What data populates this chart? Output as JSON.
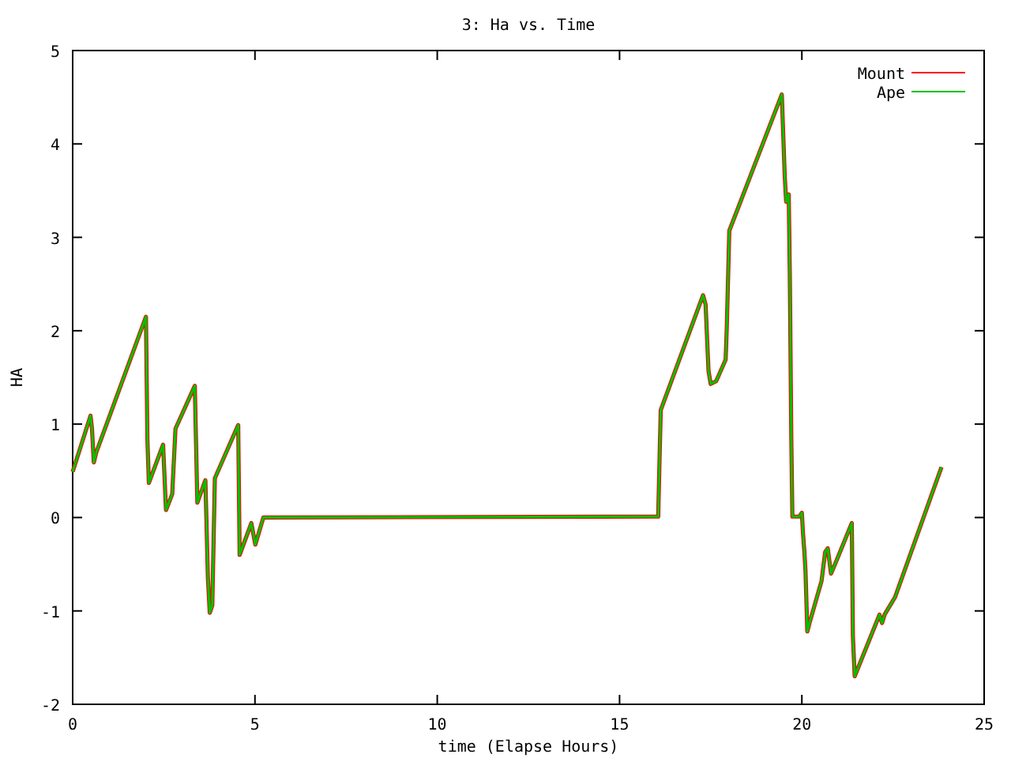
{
  "chart_data": {
    "type": "line",
    "title": "3: Ha vs. Time",
    "xlabel": "time (Elapse Hours)",
    "ylabel": "HA",
    "x": [
      0,
      0.49,
      0.53,
      0.58,
      0.65,
      2.01,
      2.05,
      2.09,
      2.48,
      2.56,
      2.73,
      2.82,
      3.35,
      3.42,
      3.64,
      3.71,
      3.76,
      3.83,
      3.9,
      4.54,
      4.58,
      4.9,
      5.01,
      5.23,
      16.06,
      16.11,
      16.13,
      17.29,
      17.36,
      17.44,
      17.5,
      17.65,
      17.91,
      17.94,
      18.01,
      19.45,
      19.53,
      19.57,
      19.64,
      19.67,
      19.71,
      19.74,
      19.93,
      20.0,
      20.03,
      20.07,
      20.1,
      20.15,
      20.21,
      20.54,
      20.64,
      20.71,
      20.8,
      20.9,
      21.37,
      21.4,
      21.45,
      22.13,
      22.2,
      22.27,
      22.56,
      23.83
    ],
    "series": [
      {
        "name": "Mount",
        "color": "#ff0000",
        "values": [
          0.49,
          1.09,
          0.95,
          0.59,
          0.7,
          2.15,
          0.84,
          0.37,
          0.78,
          0.08,
          0.25,
          0.95,
          1.41,
          0.16,
          0.4,
          -0.65,
          -1.02,
          -0.94,
          0.42,
          0.99,
          -0.4,
          -0.06,
          -0.29,
          0,
          0.01,
          0.84,
          1.15,
          2.38,
          2.28,
          1.57,
          1.43,
          1.46,
          1.69,
          2.02,
          3.07,
          4.53,
          3.66,
          3.38,
          3.46,
          2.6,
          0.87,
          0.01,
          0.01,
          0.05,
          -0.16,
          -0.37,
          -0.57,
          -1.22,
          -1.13,
          -0.68,
          -0.37,
          -0.33,
          -0.6,
          -0.51,
          -0.06,
          -1.27,
          -1.7,
          -1.04,
          -1.13,
          -1.04,
          -0.85,
          0.54
        ]
      },
      {
        "name": "Ape",
        "color": "#00c000",
        "values": [
          0.49,
          1.09,
          0.95,
          0.59,
          0.7,
          2.15,
          0.84,
          0.37,
          0.78,
          0.08,
          0.25,
          0.95,
          1.41,
          0.16,
          0.4,
          -0.65,
          -1.02,
          -0.94,
          0.42,
          0.99,
          -0.4,
          -0.06,
          -0.29,
          0,
          0.01,
          0.84,
          1.15,
          2.38,
          2.28,
          1.57,
          1.43,
          1.46,
          1.69,
          2.02,
          3.07,
          4.53,
          3.66,
          3.38,
          3.46,
          2.6,
          0.87,
          0.01,
          0.01,
          0.05,
          -0.16,
          -0.37,
          -0.57,
          -1.22,
          -1.13,
          -0.68,
          -0.37,
          -0.33,
          -0.6,
          -0.51,
          -0.06,
          -1.27,
          -1.7,
          -1.04,
          -1.13,
          -1.04,
          -0.85,
          0.54
        ]
      }
    ],
    "xlim": [
      0,
      25
    ],
    "xticks": [
      0,
      5,
      10,
      15,
      20,
      25
    ],
    "ylim": [
      -2,
      5
    ],
    "yticks": [
      -2,
      -1,
      0,
      1,
      2,
      3,
      4,
      5
    ],
    "grid": false,
    "legend": "top right"
  }
}
